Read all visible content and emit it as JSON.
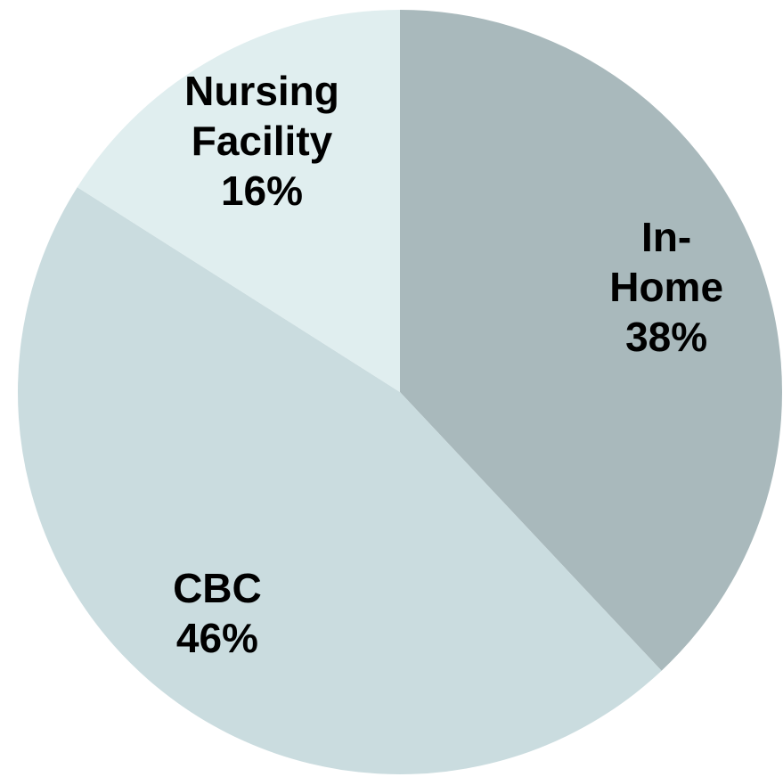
{
  "chart_data": {
    "type": "pie",
    "categories": [
      "In-Home",
      "CBC",
      "Nursing Facility"
    ],
    "values": [
      38,
      46,
      16
    ],
    "value_labels": [
      "38%",
      "46%",
      "16%"
    ],
    "colors": [
      "#a9b9bc",
      "#cadcdf",
      "#e0eeef"
    ]
  }
}
